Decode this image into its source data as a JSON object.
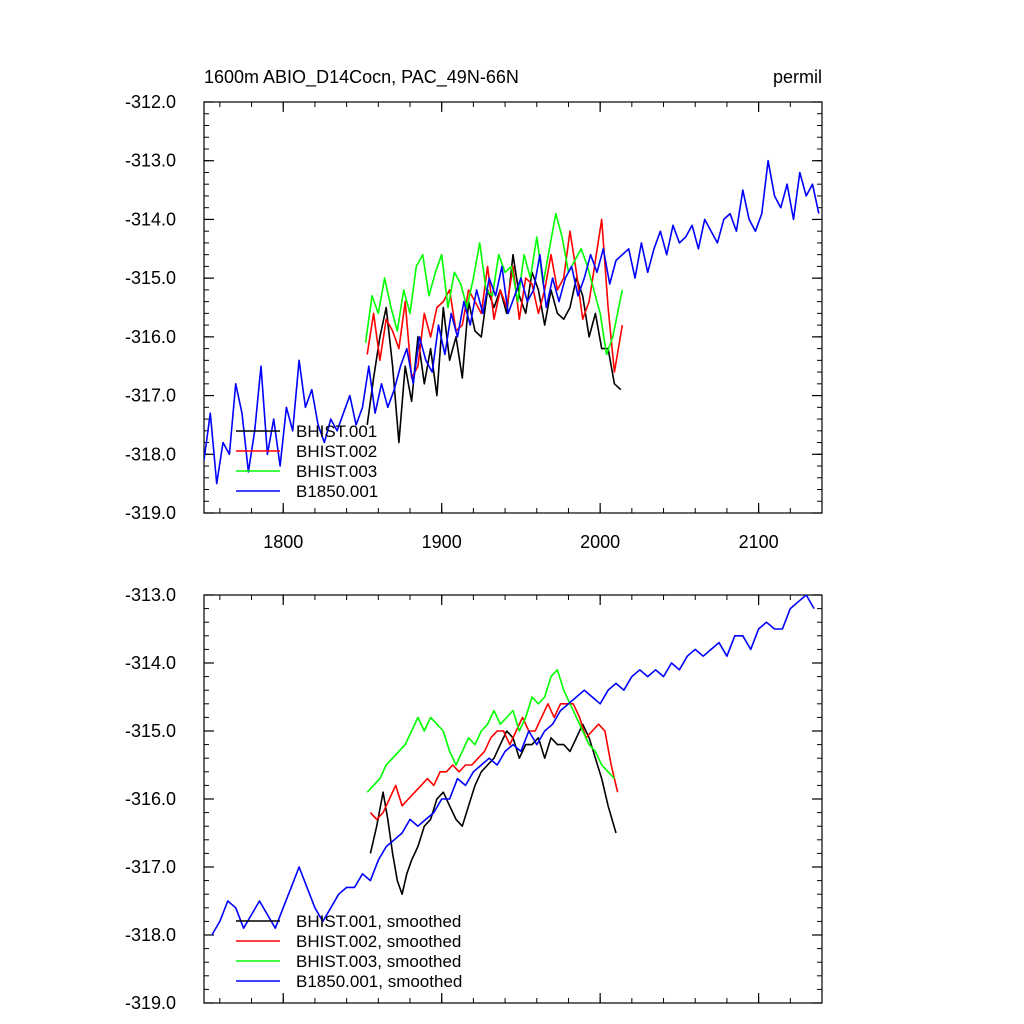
{
  "chart_data": [
    {
      "type": "line",
      "title": "1600m ABIO_D14Cocn, PAC_49N-66N",
      "units": "permil",
      "xlabel": "",
      "ylabel": "",
      "xlim": [
        1750,
        2140
      ],
      "ylim": [
        -319.0,
        -312.0
      ],
      "x_ticks": [
        1800,
        1900,
        2000,
        2100
      ],
      "x_tick_labels": [
        "1800",
        "1900",
        "2000",
        "2100"
      ],
      "y_ticks": [
        -319.0,
        -318.0,
        -317.0,
        -316.0,
        -315.0,
        -314.0,
        -313.0,
        -312.0
      ],
      "y_tick_labels": [
        "-319.0",
        "-318.0",
        "-317.0",
        "-316.0",
        "-315.0",
        "-314.0",
        "-313.0",
        "-312.0"
      ],
      "grid": false,
      "legend_position": "bottom-left",
      "series": [
        {
          "name": "BHIST.001",
          "color": "#000000",
          "x": [
            1853,
            1857,
            1861,
            1865,
            1869,
            1873,
            1877,
            1881,
            1885,
            1889,
            1893,
            1897,
            1901,
            1905,
            1909,
            1913,
            1917,
            1921,
            1925,
            1929,
            1933,
            1937,
            1941,
            1945,
            1949,
            1953,
            1957,
            1961,
            1965,
            1969,
            1973,
            1977,
            1981,
            1985,
            1989,
            1993,
            1997,
            2001,
            2005,
            2009,
            2013
          ],
          "y": [
            -317.5,
            -316.7,
            -316.0,
            -315.5,
            -316.5,
            -317.8,
            -316.5,
            -317.1,
            -316.0,
            -316.8,
            -316.2,
            -317.0,
            -315.5,
            -316.4,
            -316.0,
            -316.7,
            -315.4,
            -315.9,
            -316.0,
            -315.2,
            -315.5,
            -315.2,
            -315.6,
            -314.6,
            -315.3,
            -315.6,
            -314.9,
            -315.2,
            -315.8,
            -315.2,
            -315.6,
            -315.7,
            -315.5,
            -315.0,
            -315.3,
            -316.0,
            -315.6,
            -316.2,
            -316.2,
            -316.8,
            -316.9
          ]
        },
        {
          "name": "BHIST.002",
          "color": "#ff0000",
          "x": [
            1853,
            1857,
            1861,
            1865,
            1869,
            1873,
            1877,
            1881,
            1885,
            1889,
            1893,
            1897,
            1901,
            1905,
            1909,
            1913,
            1917,
            1921,
            1925,
            1929,
            1933,
            1937,
            1941,
            1945,
            1949,
            1953,
            1957,
            1961,
            1965,
            1969,
            1973,
            1977,
            1981,
            1985,
            1989,
            1993,
            1997,
            2001,
            2005,
            2009,
            2014
          ],
          "y": [
            -316.3,
            -315.6,
            -316.4,
            -315.7,
            -315.9,
            -316.2,
            -315.4,
            -316.7,
            -316.5,
            -315.6,
            -316.0,
            -315.5,
            -315.4,
            -315.2,
            -315.9,
            -315.8,
            -315.2,
            -315.4,
            -315.6,
            -314.8,
            -315.7,
            -315.2,
            -315.5,
            -314.8,
            -315.7,
            -315.0,
            -315.1,
            -315.6,
            -315.2,
            -314.6,
            -315.2,
            -315.0,
            -314.2,
            -314.9,
            -315.7,
            -315.4,
            -314.7,
            -314.0,
            -315.5,
            -316.6,
            -315.8
          ]
        },
        {
          "name": "BHIST.003",
          "color": "#00ff00",
          "x": [
            1852,
            1856,
            1860,
            1864,
            1868,
            1872,
            1876,
            1880,
            1884,
            1888,
            1892,
            1896,
            1900,
            1904,
            1908,
            1912,
            1916,
            1920,
            1924,
            1928,
            1932,
            1936,
            1940,
            1944,
            1948,
            1952,
            1956,
            1960,
            1964,
            1968,
            1972,
            1976,
            1980,
            1984,
            1988,
            1992,
            1996,
            2000,
            2004,
            2008,
            2014
          ],
          "y": [
            -316.1,
            -315.3,
            -315.6,
            -315.0,
            -315.5,
            -315.9,
            -315.2,
            -315.6,
            -314.8,
            -314.6,
            -315.3,
            -314.9,
            -314.6,
            -315.5,
            -314.9,
            -315.1,
            -315.5,
            -315.0,
            -314.4,
            -315.2,
            -315.3,
            -314.6,
            -314.9,
            -314.8,
            -315.4,
            -314.6,
            -315.0,
            -314.3,
            -315.1,
            -314.5,
            -313.9,
            -314.3,
            -314.9,
            -314.7,
            -314.5,
            -314.8,
            -315.2,
            -315.6,
            -316.3,
            -316.0,
            -315.2
          ]
        },
        {
          "name": "B1850.001",
          "color": "#0000ff",
          "x": [
            1750,
            1754,
            1758,
            1762,
            1766,
            1770,
            1774,
            1778,
            1782,
            1786,
            1790,
            1794,
            1798,
            1802,
            1806,
            1810,
            1814,
            1818,
            1822,
            1826,
            1830,
            1834,
            1838,
            1842,
            1846,
            1850,
            1854,
            1858,
            1862,
            1866,
            1870,
            1874,
            1878,
            1882,
            1886,
            1890,
            1894,
            1898,
            1902,
            1906,
            1910,
            1914,
            1918,
            1922,
            1926,
            1930,
            1934,
            1938,
            1942,
            1946,
            1950,
            1954,
            1958,
            1962,
            1966,
            1970,
            1974,
            1978,
            1982,
            1986,
            1990,
            1994,
            1998,
            2002,
            2006,
            2010,
            2014,
            2018,
            2022,
            2026,
            2030,
            2034,
            2038,
            2042,
            2046,
            2050,
            2054,
            2058,
            2062,
            2066,
            2070,
            2074,
            2078,
            2082,
            2086,
            2090,
            2094,
            2098,
            2102,
            2106,
            2110,
            2114,
            2118,
            2122,
            2126,
            2130,
            2134,
            2138
          ],
          "y": [
            -318.1,
            -317.3,
            -318.5,
            -317.8,
            -318.0,
            -316.8,
            -317.3,
            -318.3,
            -317.6,
            -316.5,
            -318.0,
            -317.4,
            -318.2,
            -317.2,
            -317.6,
            -316.4,
            -317.2,
            -316.9,
            -317.5,
            -317.8,
            -317.4,
            -317.6,
            -317.3,
            -317.0,
            -317.5,
            -317.2,
            -316.5,
            -317.3,
            -316.8,
            -317.2,
            -316.9,
            -316.5,
            -316.2,
            -316.8,
            -316.0,
            -316.4,
            -316.6,
            -315.8,
            -316.3,
            -315.6,
            -316.0,
            -315.4,
            -315.8,
            -315.2,
            -315.6,
            -315.0,
            -315.3,
            -314.8,
            -315.6,
            -315.3,
            -315.0,
            -315.4,
            -315.2,
            -314.6,
            -315.5,
            -315.0,
            -315.4,
            -315.0,
            -314.8,
            -315.3,
            -315.0,
            -314.6,
            -314.9,
            -314.5,
            -315.1,
            -314.7,
            -314.6,
            -314.5,
            -315.0,
            -314.4,
            -314.9,
            -314.5,
            -314.2,
            -314.6,
            -314.1,
            -314.4,
            -314.3,
            -314.1,
            -314.5,
            -314.0,
            -314.2,
            -314.4,
            -314.0,
            -313.9,
            -314.2,
            -313.5,
            -314.0,
            -314.2,
            -313.9,
            -313.0,
            -313.6,
            -313.8,
            -313.4,
            -314.0,
            -313.2,
            -313.6,
            -313.4,
            -313.9
          ]
        }
      ]
    },
    {
      "type": "line",
      "title": "",
      "xlabel": "",
      "ylabel": "",
      "xlim": [
        1750,
        2140
      ],
      "ylim": [
        -319.0,
        -313.0
      ],
      "x_ticks": [
        1800,
        1900,
        2000,
        2100
      ],
      "y_ticks": [
        -319.0,
        -318.0,
        -317.0,
        -316.0,
        -315.0,
        -314.0,
        -313.0
      ],
      "y_tick_labels": [
        "-319.0",
        "-318.0",
        "-317.0",
        "-316.0",
        "-315.0",
        "-314.0",
        "-313.0"
      ],
      "grid": false,
      "legend_position": "bottom-left",
      "series": [
        {
          "name": "BHIST.001, smoothed",
          "color": "#000000",
          "x": [
            1855,
            1859,
            1863,
            1866,
            1869,
            1872,
            1875,
            1878,
            1881,
            1885,
            1889,
            1893,
            1897,
            1901,
            1905,
            1909,
            1913,
            1917,
            1921,
            1925,
            1929,
            1933,
            1937,
            1941,
            1945,
            1949,
            1953,
            1957,
            1961,
            1965,
            1969,
            1973,
            1977,
            1981,
            1985,
            1989,
            1993,
            1997,
            2001,
            2005,
            2010
          ],
          "y": [
            -316.8,
            -316.4,
            -315.9,
            -316.3,
            -316.8,
            -317.2,
            -317.4,
            -317.1,
            -316.9,
            -316.7,
            -316.4,
            -316.3,
            -316.0,
            -315.9,
            -316.1,
            -316.3,
            -316.4,
            -316.1,
            -315.8,
            -315.6,
            -315.5,
            -315.4,
            -315.2,
            -315.0,
            -315.1,
            -315.4,
            -315.2,
            -315.2,
            -315.1,
            -315.4,
            -315.1,
            -315.2,
            -315.2,
            -315.3,
            -315.1,
            -314.9,
            -315.1,
            -315.4,
            -315.7,
            -316.1,
            -316.5
          ]
        },
        {
          "name": "BHIST.002, smoothed",
          "color": "#ff0000",
          "x": [
            1855,
            1859,
            1863,
            1867,
            1871,
            1875,
            1879,
            1883,
            1887,
            1891,
            1895,
            1899,
            1903,
            1907,
            1911,
            1915,
            1919,
            1923,
            1927,
            1931,
            1935,
            1939,
            1943,
            1947,
            1951,
            1955,
            1959,
            1963,
            1967,
            1971,
            1975,
            1979,
            1983,
            1987,
            1991,
            1995,
            1999,
            2003,
            2007,
            2011
          ],
          "y": [
            -316.2,
            -316.3,
            -316.2,
            -316.0,
            -315.8,
            -316.1,
            -316.0,
            -315.9,
            -315.8,
            -315.7,
            -315.8,
            -315.6,
            -315.6,
            -315.5,
            -315.6,
            -315.5,
            -315.5,
            -315.4,
            -315.3,
            -315.1,
            -315.0,
            -315.0,
            -315.2,
            -315.0,
            -314.8,
            -315.0,
            -315.0,
            -314.8,
            -314.6,
            -314.8,
            -314.6,
            -314.6,
            -314.6,
            -314.8,
            -315.1,
            -315.0,
            -314.9,
            -315.0,
            -315.5,
            -315.9
          ]
        },
        {
          "name": "BHIST.003, smoothed",
          "color": "#00ff00",
          "x": [
            1853,
            1857,
            1861,
            1865,
            1869,
            1873,
            1877,
            1881,
            1885,
            1889,
            1893,
            1897,
            1901,
            1905,
            1909,
            1913,
            1917,
            1921,
            1925,
            1929,
            1933,
            1937,
            1941,
            1945,
            1949,
            1953,
            1957,
            1961,
            1965,
            1969,
            1973,
            1977,
            1981,
            1985,
            1989,
            1993,
            1997,
            2001,
            2005,
            2009
          ],
          "y": [
            -315.9,
            -315.8,
            -315.7,
            -315.5,
            -315.4,
            -315.3,
            -315.2,
            -315.0,
            -314.8,
            -315.0,
            -314.8,
            -314.9,
            -315.0,
            -315.3,
            -315.5,
            -315.3,
            -315.1,
            -315.2,
            -315.0,
            -314.9,
            -314.7,
            -314.9,
            -314.8,
            -314.7,
            -315.0,
            -314.8,
            -314.5,
            -314.6,
            -314.5,
            -314.2,
            -314.1,
            -314.4,
            -314.6,
            -314.8,
            -315.0,
            -315.2,
            -315.3,
            -315.5,
            -315.6,
            -315.7
          ]
        },
        {
          "name": "B1850.001, smoothed",
          "color": "#0000ff",
          "x": [
            1755,
            1760,
            1765,
            1770,
            1775,
            1780,
            1785,
            1790,
            1795,
            1800,
            1805,
            1810,
            1815,
            1820,
            1825,
            1830,
            1835,
            1840,
            1845,
            1850,
            1855,
            1860,
            1865,
            1870,
            1875,
            1880,
            1885,
            1890,
            1895,
            1900,
            1905,
            1910,
            1915,
            1920,
            1925,
            1930,
            1935,
            1940,
            1945,
            1950,
            1955,
            1960,
            1965,
            1970,
            1975,
            1980,
            1985,
            1990,
            1995,
            2000,
            2005,
            2010,
            2015,
            2020,
            2025,
            2030,
            2035,
            2040,
            2045,
            2050,
            2055,
            2060,
            2065,
            2070,
            2075,
            2080,
            2085,
            2090,
            2095,
            2100,
            2105,
            2110,
            2115,
            2120,
            2125,
            2130,
            2135
          ],
          "y": [
            -318.0,
            -317.8,
            -317.5,
            -317.6,
            -317.9,
            -317.7,
            -317.5,
            -317.7,
            -317.9,
            -317.6,
            -317.3,
            -317.0,
            -317.3,
            -317.6,
            -317.8,
            -317.6,
            -317.4,
            -317.3,
            -317.3,
            -317.1,
            -317.2,
            -316.9,
            -316.7,
            -316.6,
            -316.5,
            -316.3,
            -316.4,
            -316.3,
            -316.2,
            -316.0,
            -316.0,
            -315.7,
            -315.8,
            -315.6,
            -315.5,
            -315.4,
            -315.5,
            -315.3,
            -315.2,
            -315.3,
            -315.0,
            -315.2,
            -315.0,
            -314.9,
            -314.7,
            -314.6,
            -314.5,
            -314.4,
            -314.5,
            -314.6,
            -314.4,
            -314.3,
            -314.4,
            -314.2,
            -314.1,
            -314.2,
            -314.1,
            -314.2,
            -314.0,
            -314.1,
            -313.9,
            -313.8,
            -313.9,
            -313.8,
            -313.7,
            -313.9,
            -313.6,
            -313.6,
            -313.8,
            -313.5,
            -313.4,
            -313.5,
            -313.5,
            -313.2,
            -313.1,
            -313.0,
            -313.2
          ]
        }
      ]
    }
  ]
}
